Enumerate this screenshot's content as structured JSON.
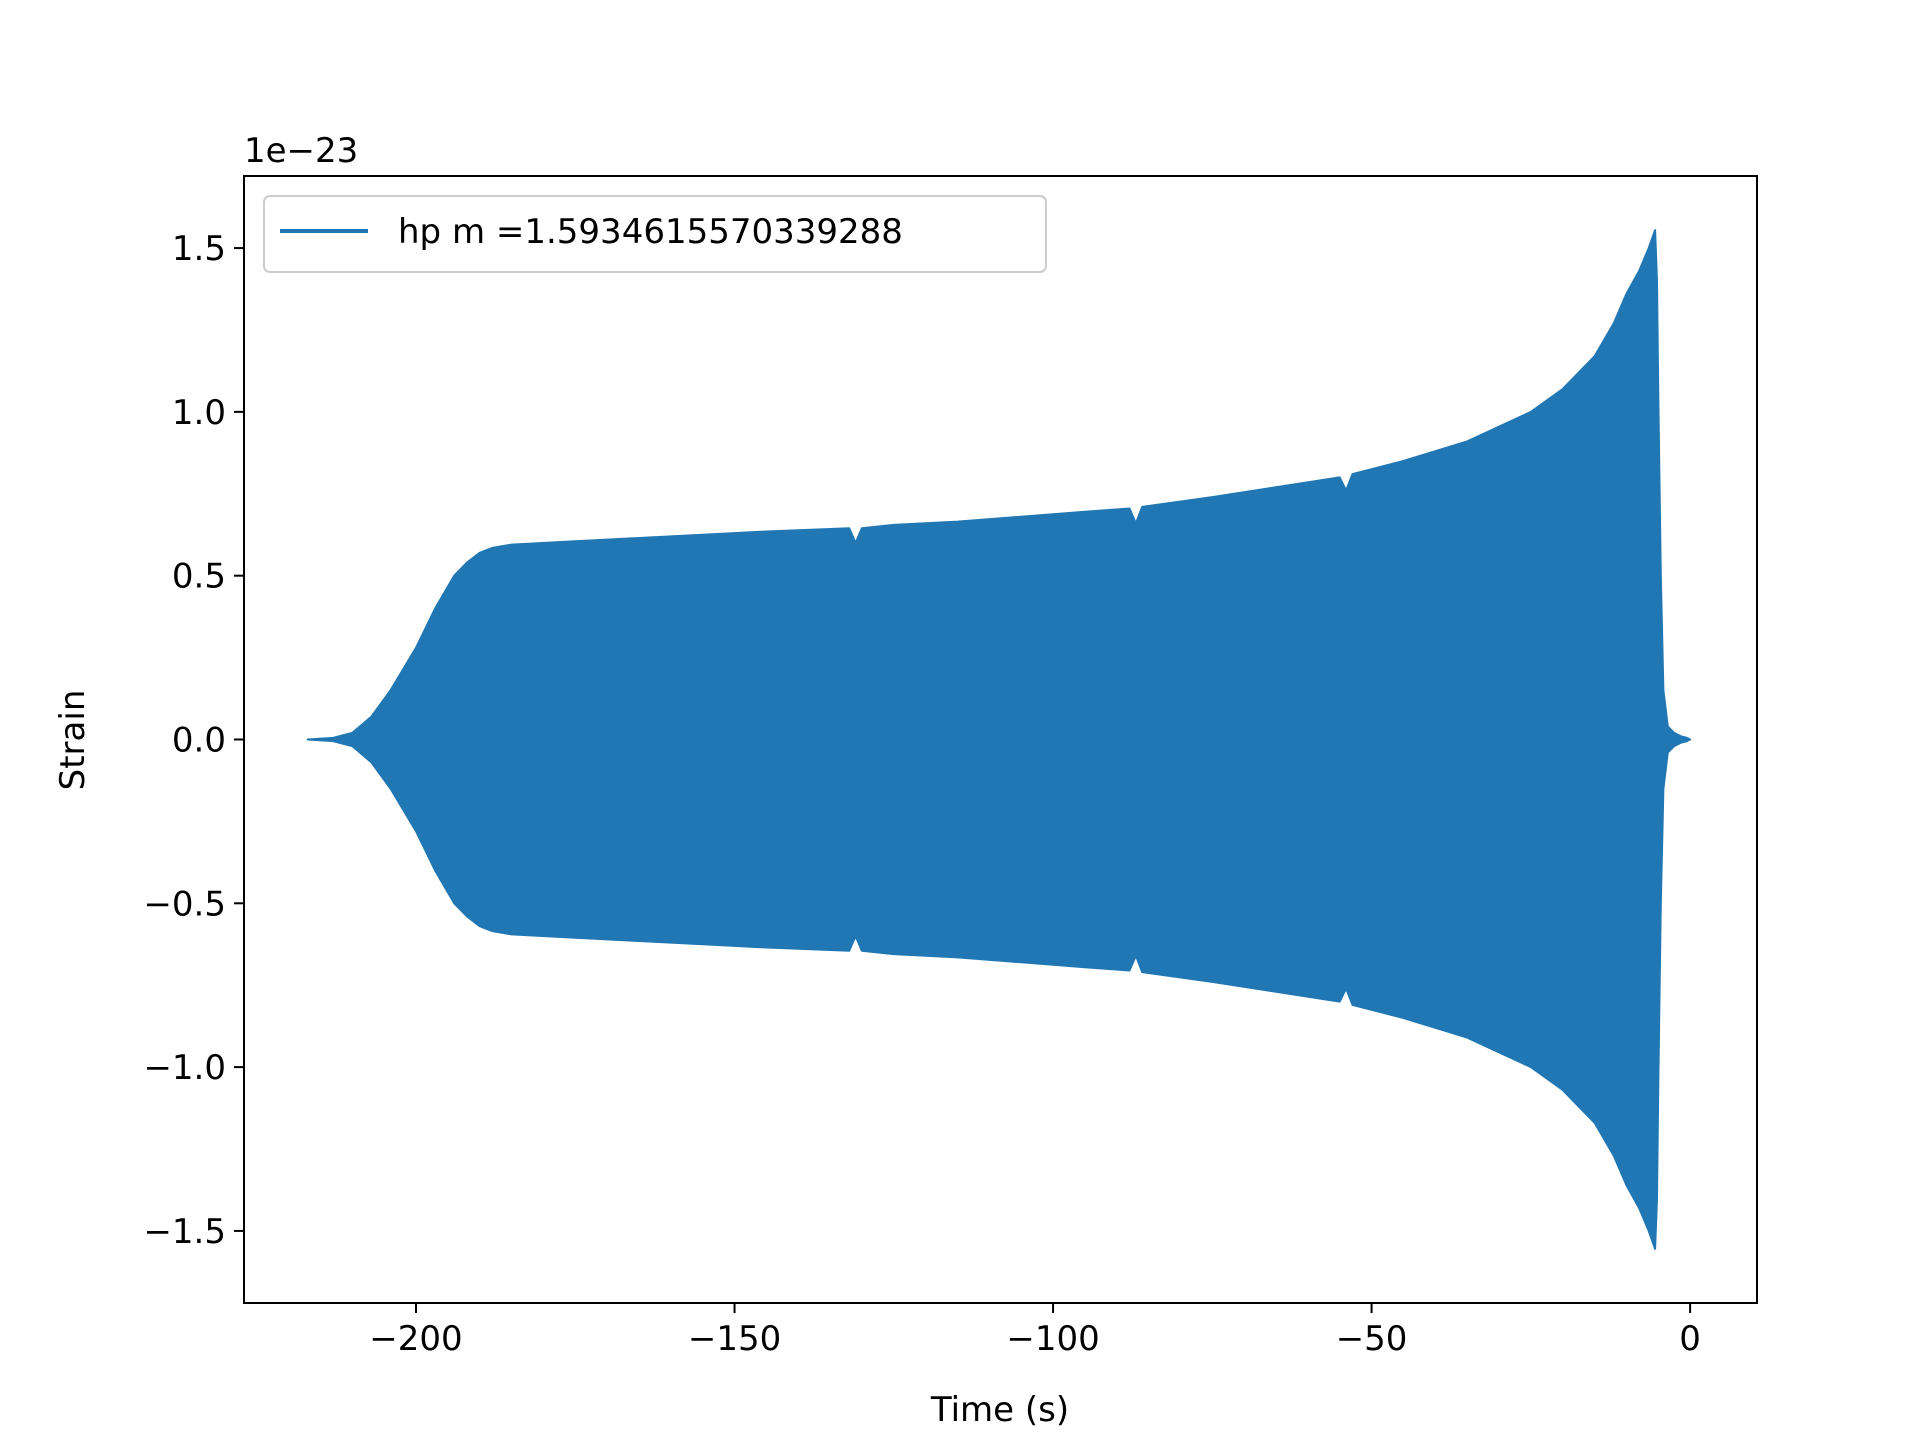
{
  "chart_data": {
    "type": "line",
    "title": "",
    "xlabel": "Time (s)",
    "ylabel": "Strain",
    "y_offset_label": "1e−23",
    "xlim": [
      -227,
      10.5
    ],
    "ylim": [
      -1.72,
      1.72
    ],
    "x_ticks": [
      -200,
      -150,
      -100,
      -50,
      0
    ],
    "x_tick_labels": [
      "−200",
      "−150",
      "−100",
      "−50",
      "0"
    ],
    "y_ticks": [
      1.5,
      1.0,
      0.5,
      0.0,
      -0.5,
      -1.0,
      -1.5
    ],
    "y_tick_labels": [
      "1.5",
      "1.0",
      "0.5",
      "0.0",
      "−0.5",
      "−1.0",
      "−1.5"
    ],
    "grid": false,
    "legend_position": "top-left",
    "series": [
      {
        "name": "hp m =1.5934615570339288",
        "color": "#2077b4",
        "envelope": {
          "time": [
            -217,
            -213,
            -210,
            -207,
            -204,
            -200,
            -197,
            -194,
            -192,
            -190,
            -188,
            -185,
            -175,
            -165,
            -155,
            -145,
            -132,
            -131,
            -130,
            -125,
            -115,
            -105,
            -95,
            -88,
            -87,
            -86,
            -75,
            -65,
            -55,
            -54,
            -53,
            -45,
            -35,
            -25,
            -20,
            -15,
            -12,
            -10,
            -8,
            -6.5,
            -5.5,
            -5.2,
            -5.0,
            -4.6,
            -4.2,
            -3.5,
            -2.5,
            -1.5,
            -0.5,
            0.0
          ],
          "amplitude": [
            0.0,
            0.005,
            0.02,
            0.07,
            0.15,
            0.28,
            0.4,
            0.5,
            0.54,
            0.57,
            0.585,
            0.595,
            0.605,
            0.615,
            0.625,
            0.635,
            0.645,
            0.6,
            0.645,
            0.655,
            0.665,
            0.68,
            0.695,
            0.705,
            0.66,
            0.71,
            0.74,
            0.77,
            0.8,
            0.76,
            0.81,
            0.85,
            0.91,
            1.0,
            1.07,
            1.17,
            1.27,
            1.36,
            1.43,
            1.5,
            1.555,
            1.4,
            1.05,
            0.5,
            0.15,
            0.04,
            0.02,
            0.01,
            0.005,
            0.0
          ]
        }
      }
    ]
  }
}
